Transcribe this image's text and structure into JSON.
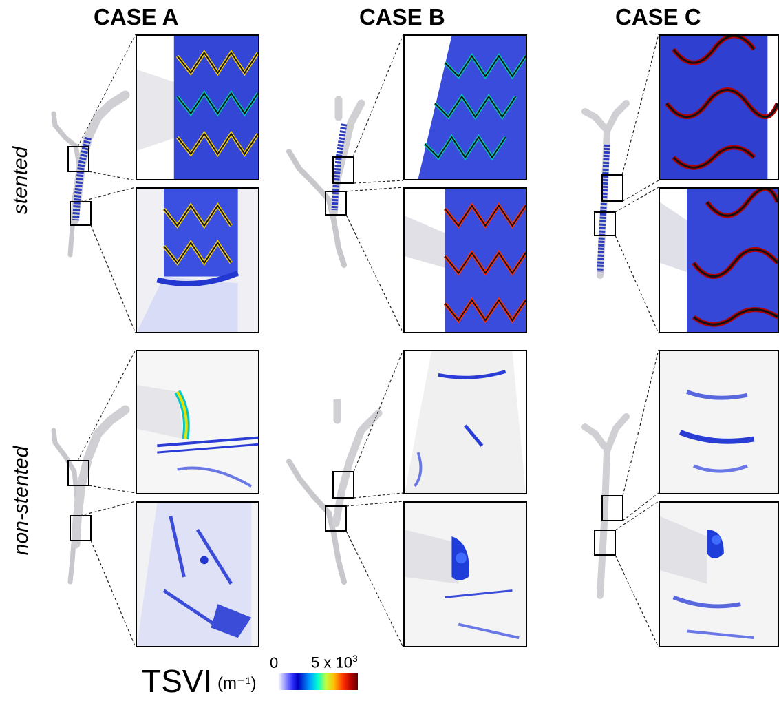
{
  "cases": [
    {
      "title": "CASE A"
    },
    {
      "title": "CASE B"
    },
    {
      "title": "CASE C"
    }
  ],
  "rows": [
    {
      "label": "stented"
    },
    {
      "label": "non-stented"
    }
  ],
  "colorbar": {
    "quantity": "TSVI",
    "unit": "(m⁻¹)",
    "min_label": "0",
    "max_label": "5 x 10",
    "max_exponent": "3",
    "colors": [
      "#ffffff",
      "#0000ff",
      "#00a0ff",
      "#00ffd0",
      "#c0ff40",
      "#ffc000",
      "#ff3000",
      "#600000"
    ]
  }
}
